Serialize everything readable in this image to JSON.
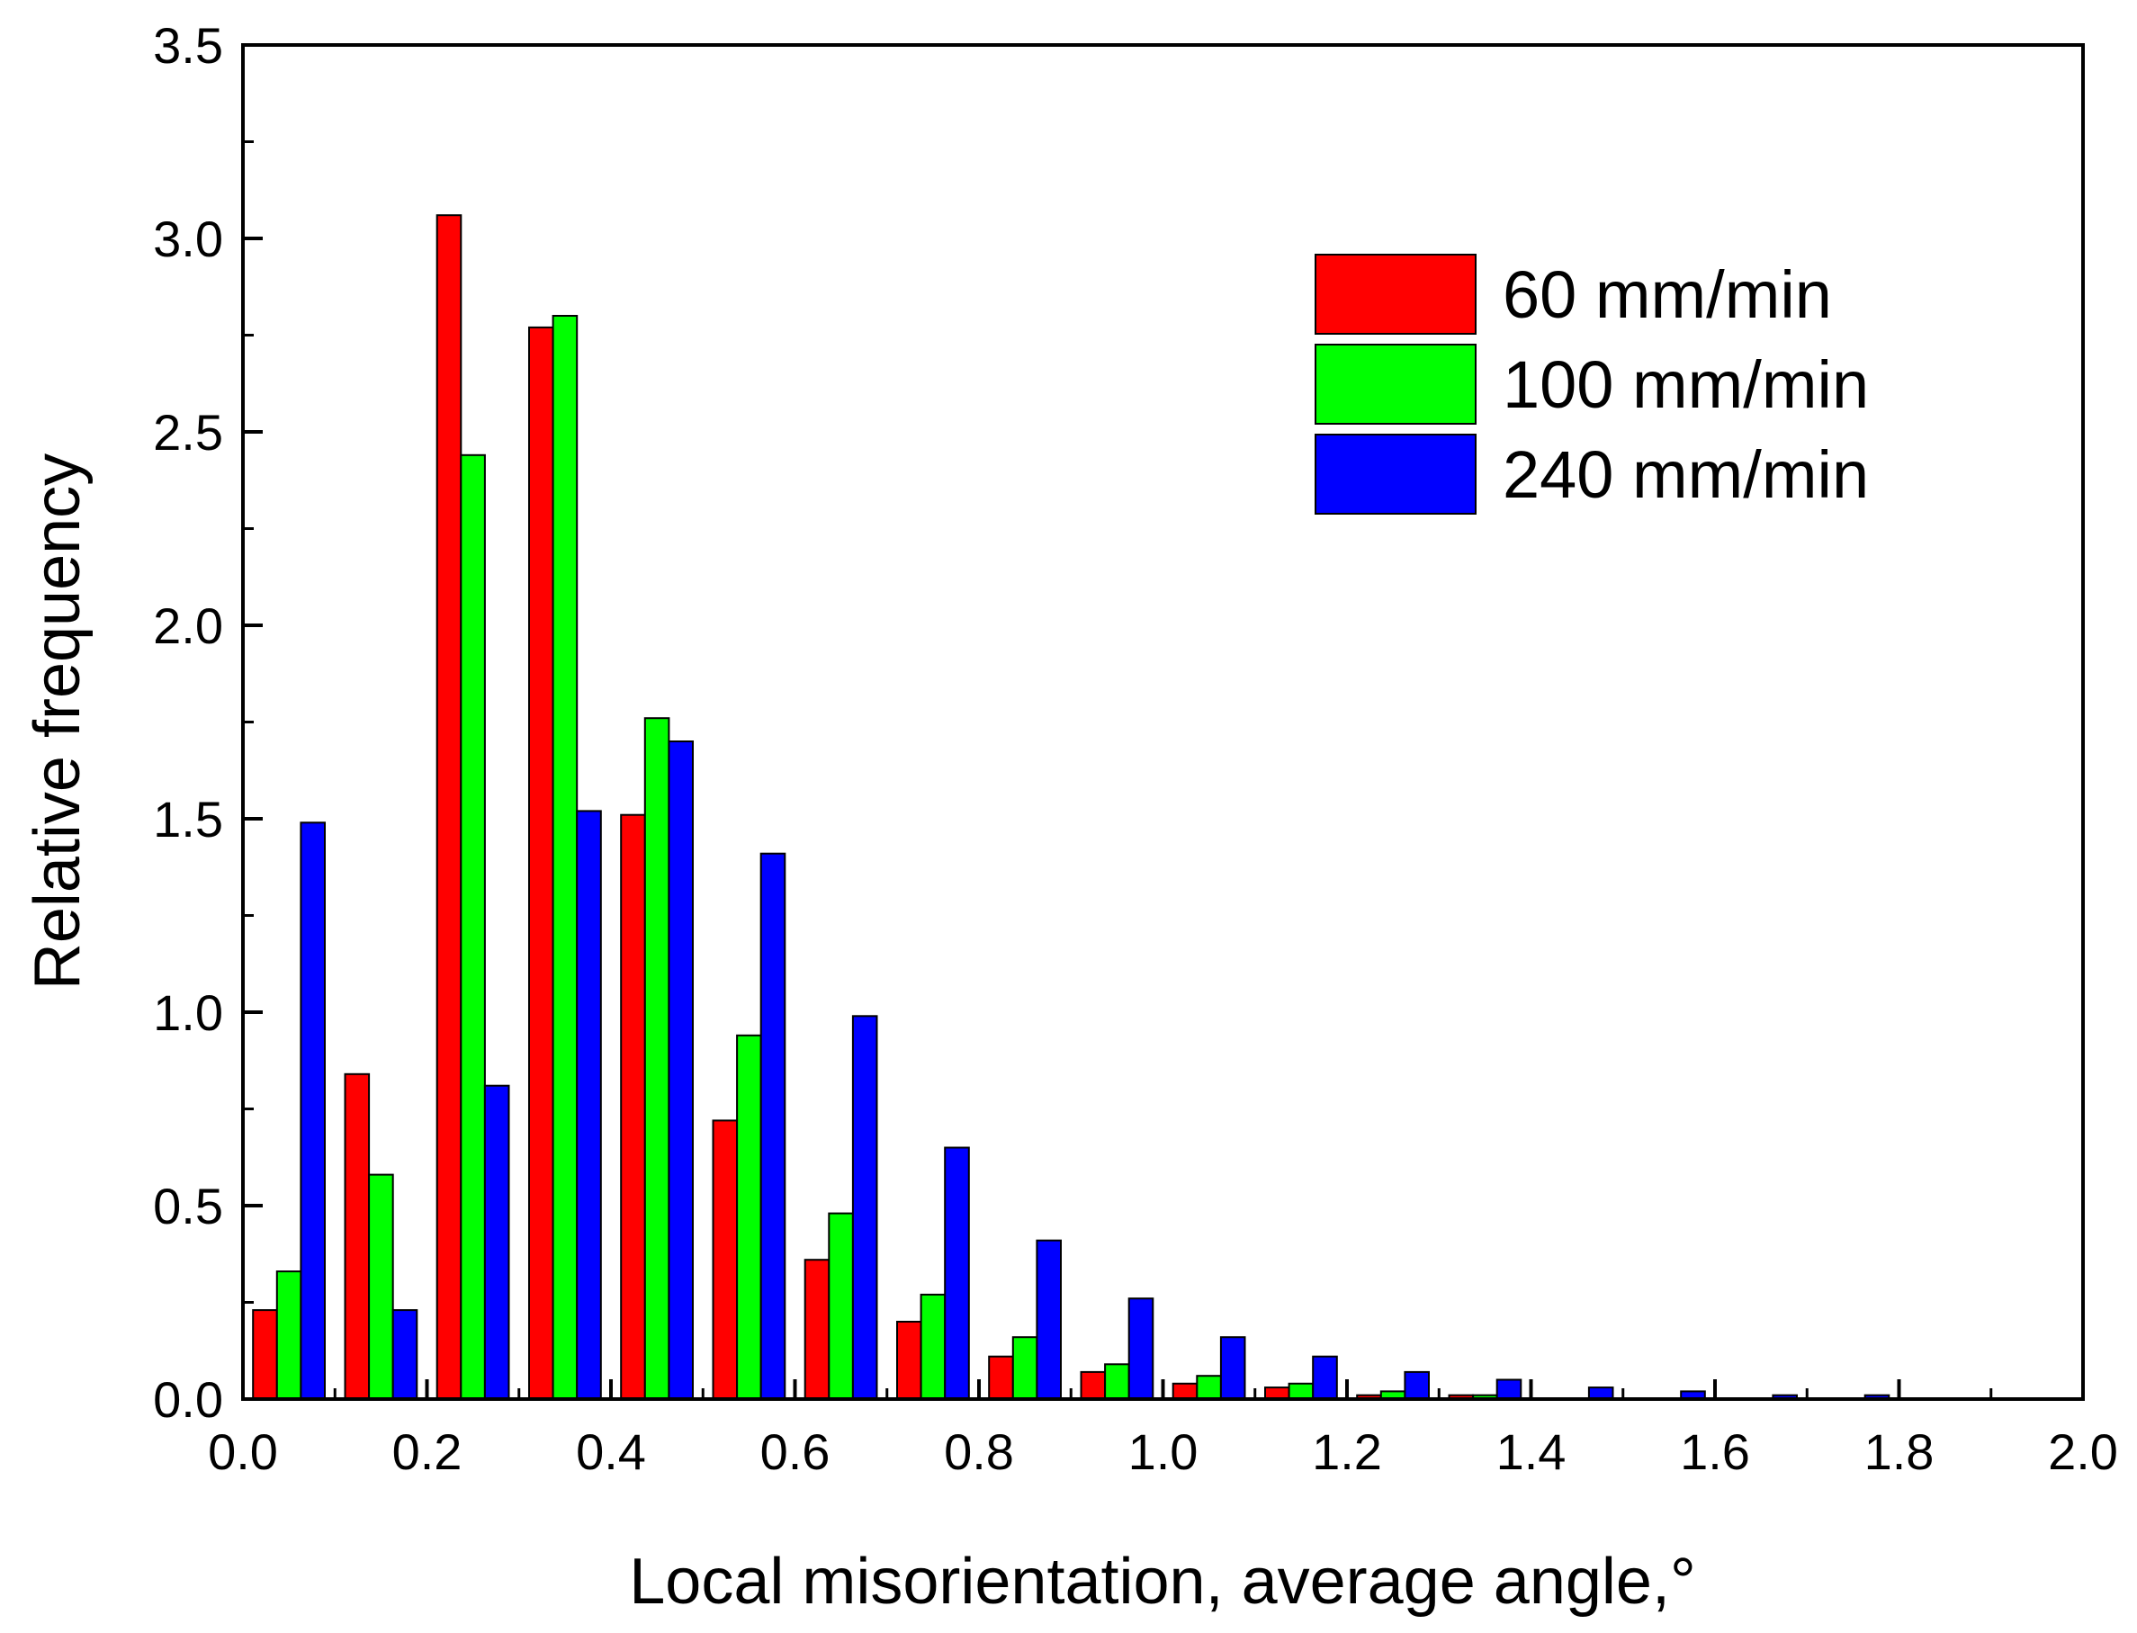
{
  "chart_data": {
    "type": "bar",
    "title": "",
    "xlabel": "Local misorientation, average angle,°",
    "ylabel": "Relative frequency",
    "xlim": [
      0.0,
      2.0
    ],
    "ylim": [
      0.0,
      3.5
    ],
    "bin_width": 0.1,
    "x": [
      0.05,
      0.15,
      0.25,
      0.35,
      0.45,
      0.55,
      0.65,
      0.75,
      0.85,
      0.95,
      1.05,
      1.15,
      1.25,
      1.35,
      1.45,
      1.55,
      1.65,
      1.75,
      1.85,
      1.95
    ],
    "x_ticks": [
      "0.0",
      "0.2",
      "0.4",
      "0.6",
      "0.8",
      "1.0",
      "1.2",
      "1.4",
      "1.6",
      "1.8",
      "2.0"
    ],
    "y_ticks": [
      "0.0",
      "0.5",
      "1.0",
      "1.5",
      "2.0",
      "2.5",
      "3.0",
      "3.5"
    ],
    "grid": false,
    "legend_position": "top-right",
    "series": [
      {
        "name": "60 mm/min",
        "color": "#ff0000",
        "values": [
          0.23,
          0.84,
          3.06,
          2.77,
          1.51,
          0.72,
          0.36,
          0.2,
          0.11,
          0.07,
          0.04,
          0.03,
          0.01,
          0.01,
          0.0,
          0.0,
          0.0,
          0.0,
          0.0,
          0.0
        ]
      },
      {
        "name": "100 mm/min",
        "color": "#00ff00",
        "values": [
          0.33,
          0.58,
          2.44,
          2.8,
          1.76,
          0.94,
          0.48,
          0.27,
          0.16,
          0.09,
          0.06,
          0.04,
          0.02,
          0.01,
          0.0,
          0.0,
          0.0,
          0.0,
          0.0,
          0.0
        ]
      },
      {
        "name": "240 mm/min",
        "color": "#0000ff",
        "values": [
          1.49,
          0.23,
          0.81,
          1.52,
          1.7,
          1.41,
          0.99,
          0.65,
          0.41,
          0.26,
          0.16,
          0.11,
          0.07,
          0.05,
          0.03,
          0.02,
          0.01,
          0.01,
          0.0,
          0.0
        ]
      }
    ]
  }
}
